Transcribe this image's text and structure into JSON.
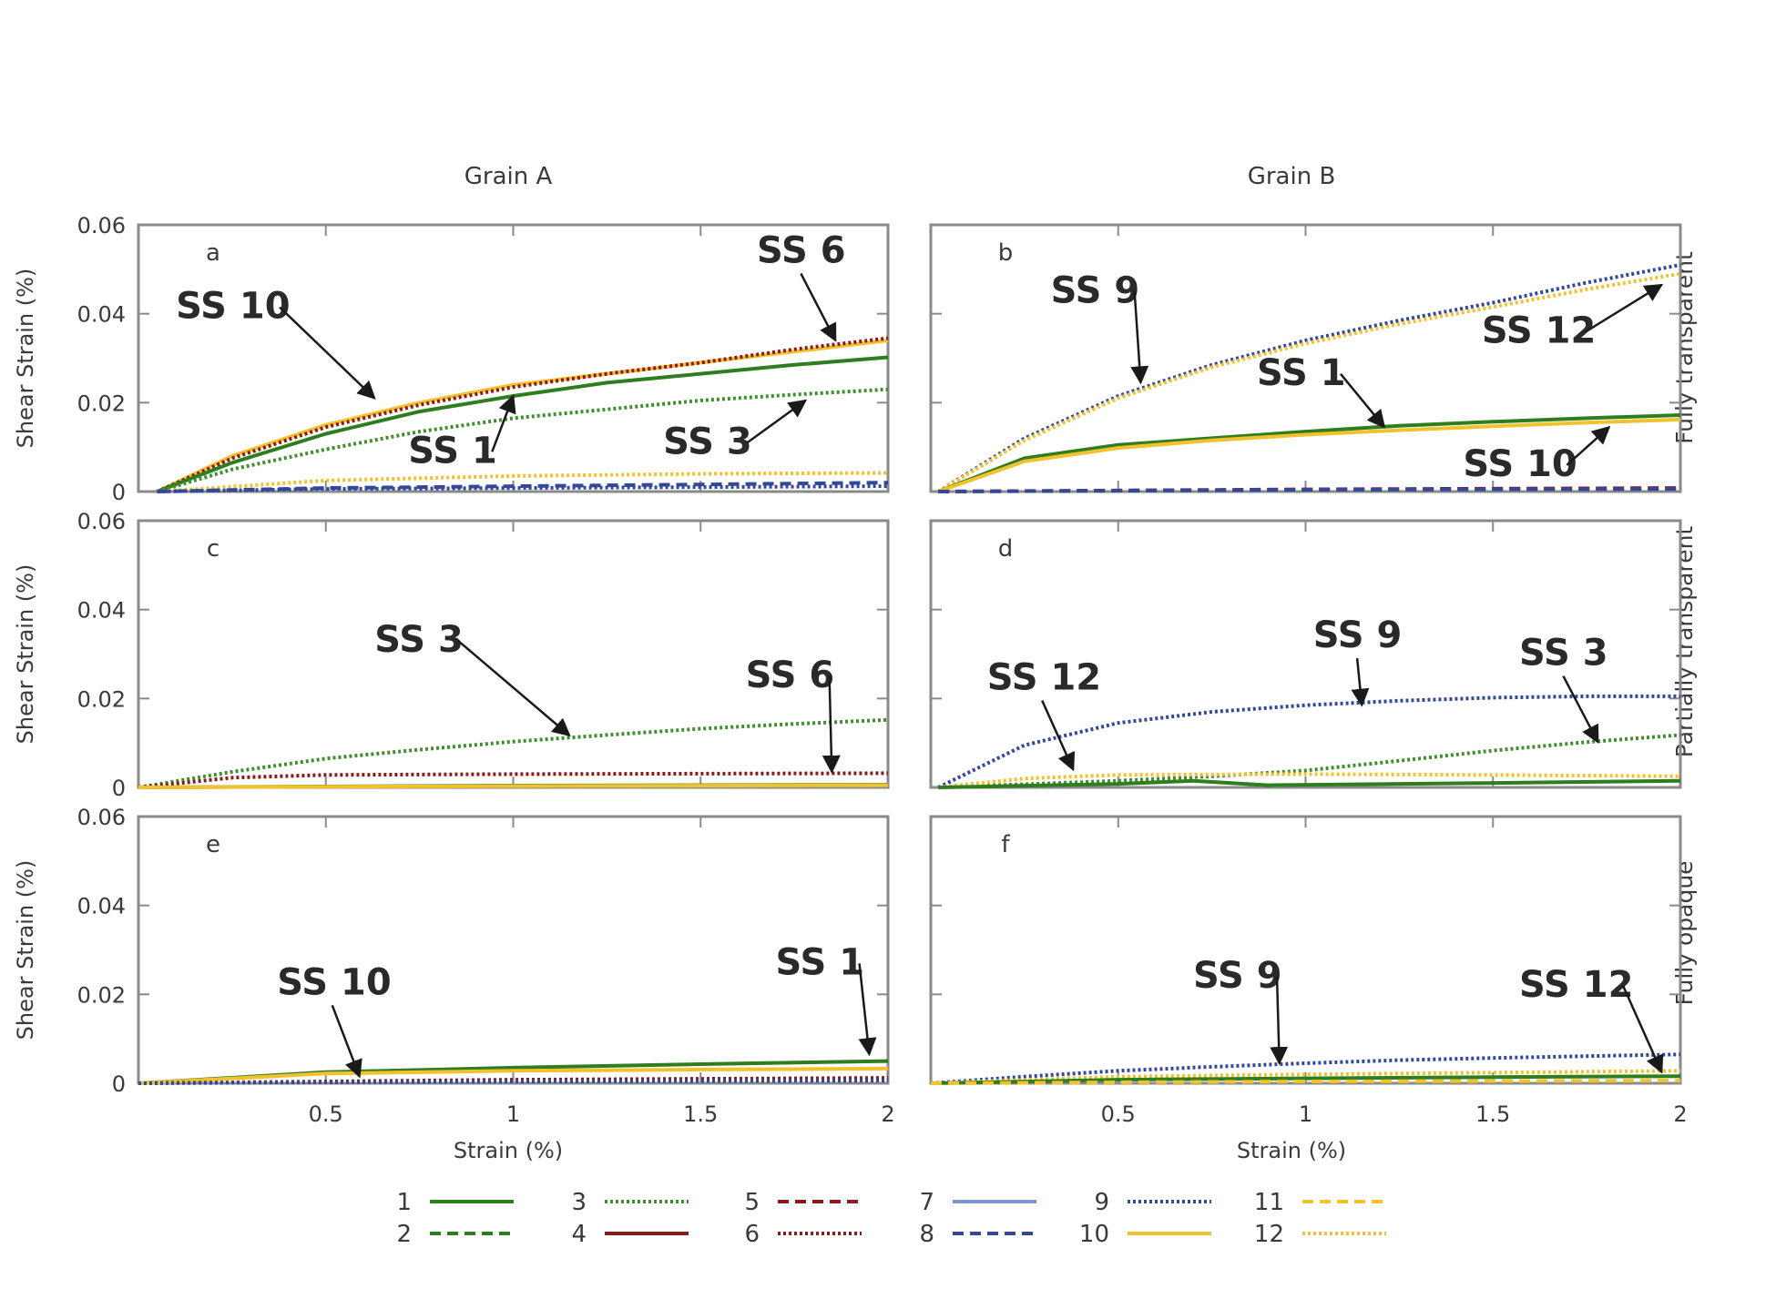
{
  "figure": {
    "column_titles": [
      "Grain A",
      "Grain B"
    ],
    "row_titles": [
      "Fully transparent",
      "Partially transparent",
      "Fully opaque"
    ]
  },
  "chart_data": {
    "type": "line",
    "xlabel": "Strain (%)",
    "ylabel": "Shear Strain (%)",
    "xlim": [
      0,
      2
    ],
    "ylim": [
      0,
      0.06
    ],
    "x_ticks": [
      "0.5",
      "1",
      "1.5",
      "2"
    ],
    "y_ticks": [
      "0",
      "0.02",
      "0.04",
      "0.06"
    ],
    "grid": false,
    "legend_placement": "bottom-center",
    "legend": [
      {
        "label": "1",
        "color": "#2e7d1f",
        "dash": "solid"
      },
      {
        "label": "2",
        "color": "#2e7d1f",
        "dash": "dashed"
      },
      {
        "label": "3",
        "color": "#3f8f2e",
        "dash": "dotted"
      },
      {
        "label": "4",
        "color": "#8b1a1a",
        "dash": "solid"
      },
      {
        "label": "5",
        "color": "#8b1a1a",
        "dash": "dashed"
      },
      {
        "label": "6",
        "color": "#8b1a1a",
        "dash": "dotted"
      },
      {
        "label": "7",
        "color": "#7f95cf",
        "dash": "solid"
      },
      {
        "label": "8",
        "color": "#34489a",
        "dash": "dashed"
      },
      {
        "label": "9",
        "color": "#34489a",
        "dash": "dotted"
      },
      {
        "label": "10",
        "color": "#f2c12e",
        "dash": "solid"
      },
      {
        "label": "11",
        "color": "#f2c12e",
        "dash": "dashed"
      },
      {
        "label": "12",
        "color": "#f2c12e",
        "dash": "dotted"
      }
    ],
    "panels": [
      {
        "letter": "a",
        "series": [
          {
            "ss": "10",
            "color": "#f2c12e",
            "dash": "solid",
            "x": [
              0.05,
              0.25,
              0.5,
              0.75,
              1,
              1.25,
              1.5,
              1.75,
              2
            ],
            "y": [
              0,
              0.008,
              0.015,
              0.02,
              0.024,
              0.0265,
              0.029,
              0.0315,
              0.034
            ]
          },
          {
            "ss": "6",
            "color": "#8b1a1a",
            "dash": "dotted",
            "x": [
              0.05,
              0.25,
              0.5,
              0.75,
              1,
              1.25,
              1.5,
              1.75,
              2
            ],
            "y": [
              0,
              0.0075,
              0.0145,
              0.0195,
              0.0235,
              0.0265,
              0.029,
              0.032,
              0.0345
            ]
          },
          {
            "ss": "1",
            "color": "#2e7d1f",
            "dash": "solid",
            "x": [
              0.05,
              0.25,
              0.5,
              0.75,
              1,
              1.25,
              1.5,
              1.75,
              2
            ],
            "y": [
              0,
              0.0065,
              0.013,
              0.018,
              0.0215,
              0.0245,
              0.0265,
              0.0285,
              0.0302
            ]
          },
          {
            "ss": "3",
            "color": "#3f8f2e",
            "dash": "dotted",
            "x": [
              0.05,
              0.25,
              0.5,
              0.75,
              1,
              1.25,
              1.5,
              1.75,
              2
            ],
            "y": [
              0,
              0.005,
              0.0095,
              0.0135,
              0.0165,
              0.0185,
              0.0205,
              0.0218,
              0.023
            ]
          },
          {
            "ss": "12",
            "color": "#f2c12e",
            "dash": "dotted",
            "x": [
              0.05,
              0.5,
              1,
              1.5,
              2
            ],
            "y": [
              0,
              0.0025,
              0.0035,
              0.004,
              0.0042
            ]
          },
          {
            "ss": "8",
            "color": "#34489a",
            "dash": "dashed",
            "x": [
              0.05,
              0.5,
              1,
              1.5,
              2
            ],
            "y": [
              0,
              0.0008,
              0.0012,
              0.0016,
              0.002
            ]
          },
          {
            "ss": "9",
            "color": "#34489a",
            "dash": "dotted",
            "x": [
              0.05,
              0.5,
              1,
              1.5,
              2
            ],
            "y": [
              0,
              0.0006,
              0.0008,
              0.001,
              0.0012
            ]
          }
        ],
        "annotations": [
          {
            "text": "SS 10",
            "x": 0.1,
            "y": 0.039,
            "ax": 0.63,
            "ay": 0.021
          },
          {
            "text": "SS 6",
            "x": 1.65,
            "y": 0.0515,
            "ax": 1.86,
            "ay": 0.034
          },
          {
            "text": "SS 1",
            "x": 0.72,
            "y": 0.0065,
            "ax": 1.0,
            "ay": 0.0215
          },
          {
            "text": "SS 3",
            "x": 1.4,
            "y": 0.0085,
            "ax": 1.78,
            "ay": 0.0205
          }
        ]
      },
      {
        "letter": "b",
        "series": [
          {
            "ss": "9",
            "color": "#34489a",
            "dash": "dotted",
            "x": [
              0.02,
              0.25,
              0.5,
              0.75,
              1,
              1.25,
              1.5,
              1.75,
              2
            ],
            "y": [
              0,
              0.012,
              0.0215,
              0.0285,
              0.034,
              0.0385,
              0.0425,
              0.047,
              0.051
            ]
          },
          {
            "ss": "12",
            "color": "#f2c12e",
            "dash": "dotted",
            "x": [
              0.02,
              0.25,
              0.5,
              0.75,
              1,
              1.25,
              1.5,
              1.75,
              2
            ],
            "y": [
              0,
              0.0115,
              0.021,
              0.028,
              0.0333,
              0.0377,
              0.0415,
              0.0455,
              0.049
            ]
          },
          {
            "ss": "1",
            "color": "#2e7d1f",
            "dash": "solid",
            "x": [
              0.02,
              0.25,
              0.5,
              0.75,
              1,
              1.25,
              1.5,
              1.75,
              2
            ],
            "y": [
              0,
              0.0075,
              0.0105,
              0.012,
              0.0135,
              0.0148,
              0.0157,
              0.0165,
              0.0172
            ]
          },
          {
            "ss": "10",
            "color": "#f2c12e",
            "dash": "solid",
            "x": [
              0.02,
              0.25,
              0.5,
              0.75,
              1,
              1.25,
              1.5,
              1.75,
              2
            ],
            "y": [
              0,
              0.0068,
              0.0098,
              0.0115,
              0.0128,
              0.0138,
              0.0147,
              0.0155,
              0.0162
            ]
          },
          {
            "ss": "5",
            "color": "#8b1a1a",
            "dash": "dashed",
            "x": [
              0.02,
              1,
              2
            ],
            "y": [
              0,
              0.0005,
              0.0008
            ]
          },
          {
            "ss": "8",
            "color": "#34489a",
            "dash": "dashed",
            "x": [
              0.02,
              1,
              2
            ],
            "y": [
              0,
              0.0004,
              0.0006
            ]
          }
        ],
        "annotations": [
          {
            "text": "SS 9",
            "x": 0.32,
            "y": 0.0425,
            "ax": 0.56,
            "ay": 0.0245
          },
          {
            "text": "SS 12",
            "x": 1.47,
            "y": 0.0335,
            "ax": 1.95,
            "ay": 0.0465
          },
          {
            "text": "SS 1",
            "x": 0.87,
            "y": 0.024,
            "ax": 1.21,
            "ay": 0.0145
          },
          {
            "text": "SS 10",
            "x": 1.42,
            "y": 0.0035,
            "ax": 1.81,
            "ay": 0.0145
          }
        ]
      },
      {
        "letter": "c",
        "series": [
          {
            "ss": "3",
            "color": "#3f8f2e",
            "dash": "dotted",
            "x": [
              0,
              0.25,
              0.5,
              0.75,
              1,
              1.25,
              1.5,
              1.75,
              2
            ],
            "y": [
              0,
              0.0035,
              0.0065,
              0.0085,
              0.0103,
              0.0118,
              0.0132,
              0.0143,
              0.0152
            ]
          },
          {
            "ss": "6",
            "color": "#8b1a1a",
            "dash": "dotted",
            "x": [
              0,
              0.25,
              0.5,
              1,
              1.5,
              2
            ],
            "y": [
              0,
              0.0022,
              0.0028,
              0.003,
              0.0031,
              0.0032
            ]
          },
          {
            "ss": "1",
            "color": "#2e7d1f",
            "dash": "solid",
            "x": [
              0,
              1,
              2
            ],
            "y": [
              0,
              0.0004,
              0.0006
            ]
          },
          {
            "ss": "10",
            "color": "#f2c12e",
            "dash": "solid",
            "x": [
              0,
              1,
              2
            ],
            "y": [
              0,
              0.0003,
              0.0005
            ]
          }
        ],
        "annotations": [
          {
            "text": "SS 3",
            "x": 0.63,
            "y": 0.0305,
            "ax": 1.15,
            "ay": 0.0117
          },
          {
            "text": "SS 6",
            "x": 1.62,
            "y": 0.0225,
            "ax": 1.85,
            "ay": 0.0035
          }
        ]
      },
      {
        "letter": "d",
        "series": [
          {
            "ss": "9",
            "color": "#34489a",
            "dash": "dotted",
            "x": [
              0.02,
              0.25,
              0.5,
              0.75,
              1,
              1.25,
              1.5,
              1.75,
              2
            ],
            "y": [
              0,
              0.0095,
              0.0145,
              0.017,
              0.0185,
              0.0195,
              0.0202,
              0.0205,
              0.0205
            ]
          },
          {
            "ss": "3",
            "color": "#3f8f2e",
            "dash": "dotted",
            "x": [
              0.02,
              0.5,
              0.75,
              1,
              1.25,
              1.5,
              1.75,
              2
            ],
            "y": [
              0,
              0.0015,
              0.0025,
              0.0038,
              0.006,
              0.0083,
              0.0102,
              0.0118
            ]
          },
          {
            "ss": "12",
            "color": "#f2c12e",
            "dash": "dotted",
            "x": [
              0.02,
              0.25,
              0.5,
              1,
              1.5,
              2
            ],
            "y": [
              0,
              0.002,
              0.0028,
              0.003,
              0.0028,
              0.0025
            ]
          },
          {
            "ss": "1",
            "color": "#2e7d1f",
            "dash": "solid",
            "x": [
              0.02,
              0.5,
              0.7,
              0.9,
              1.5,
              2
            ],
            "y": [
              0,
              0.0008,
              0.0015,
              0.0005,
              0.001,
              0.0015
            ]
          }
        ],
        "annotations": [
          {
            "text": "SS 12",
            "x": 0.15,
            "y": 0.022,
            "ax": 0.38,
            "ay": 0.004
          },
          {
            "text": "SS 9",
            "x": 1.02,
            "y": 0.0315,
            "ax": 1.15,
            "ay": 0.0185
          },
          {
            "text": "SS 3",
            "x": 1.57,
            "y": 0.0275,
            "ax": 1.78,
            "ay": 0.0102
          }
        ]
      },
      {
        "letter": "e",
        "series": [
          {
            "ss": "1",
            "color": "#2e7d1f",
            "dash": "solid",
            "x": [
              0,
              0.5,
              1,
              1.5,
              2
            ],
            "y": [
              0,
              0.0025,
              0.0035,
              0.0043,
              0.005
            ]
          },
          {
            "ss": "10",
            "color": "#f2c12e",
            "dash": "solid",
            "x": [
              0,
              0.5,
              1,
              1.5,
              2
            ],
            "y": [
              0,
              0.0022,
              0.0028,
              0.0031,
              0.0033
            ]
          },
          {
            "ss": "6",
            "color": "#8b1a1a",
            "dash": "dotted",
            "x": [
              0,
              1,
              2
            ],
            "y": [
              0,
              0.0008,
              0.0012
            ]
          },
          {
            "ss": "9",
            "color": "#34489a",
            "dash": "dotted",
            "x": [
              0,
              1,
              2
            ],
            "y": [
              0,
              0.0004,
              0.0006
            ]
          }
        ],
        "annotations": [
          {
            "text": "SS 10",
            "x": 0.37,
            "y": 0.02,
            "ax": 0.59,
            "ay": 0.0015
          },
          {
            "text": "SS 1",
            "x": 1.7,
            "y": 0.0245,
            "ax": 1.95,
            "ay": 0.0065
          }
        ]
      },
      {
        "letter": "f",
        "series": [
          {
            "ss": "9",
            "color": "#34489a",
            "dash": "dotted",
            "x": [
              0,
              0.25,
              0.5,
              0.75,
              1,
              1.25,
              1.5,
              1.75,
              2
            ],
            "y": [
              0,
              0.0015,
              0.0028,
              0.0037,
              0.0045,
              0.0052,
              0.0057,
              0.0061,
              0.0065
            ]
          },
          {
            "ss": "12",
            "color": "#f2c12e",
            "dash": "dotted",
            "x": [
              0,
              0.5,
              1,
              1.5,
              2
            ],
            "y": [
              0,
              0.0015,
              0.002,
              0.0024,
              0.0028
            ]
          },
          {
            "ss": "1",
            "color": "#2e7d1f",
            "dash": "solid",
            "x": [
              0,
              0.5,
              1,
              1.5,
              2
            ],
            "y": [
              0,
              0.0008,
              0.0011,
              0.0014,
              0.0016
            ]
          },
          {
            "ss": "11",
            "color": "#f2c12e",
            "dash": "dashed",
            "x": [
              0,
              1,
              2
            ],
            "y": [
              0,
              0.0004,
              0.0006
            ]
          }
        ],
        "annotations": [
          {
            "text": "SS 9",
            "x": 0.7,
            "y": 0.0215,
            "ax": 0.93,
            "ay": 0.0045
          },
          {
            "text": "SS 12",
            "x": 1.57,
            "y": 0.0195,
            "ax": 1.95,
            "ay": 0.0025
          }
        ]
      }
    ]
  }
}
